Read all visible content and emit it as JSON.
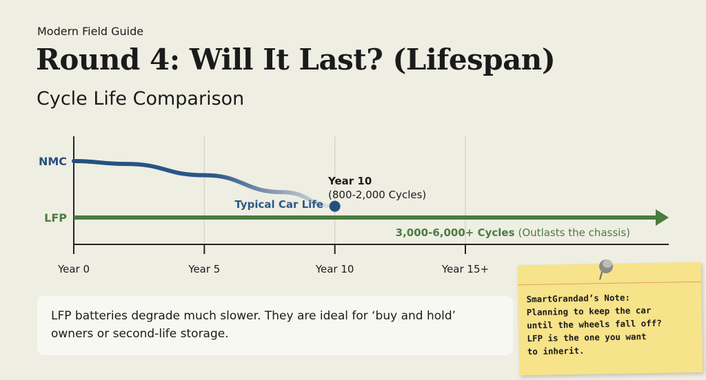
{
  "header": {
    "kicker": "Modern Field Guide",
    "title": "Round 4: Will It Last? (Lifespan)",
    "subtitle": "Cycle Life Comparison"
  },
  "chart_data": {
    "type": "line",
    "x_ticks": [
      "Year 0",
      "Year 5",
      "Year 10",
      "Year 15+"
    ],
    "x": [
      0,
      5,
      10,
      15
    ],
    "xlim": [
      0,
      18
    ],
    "grid": true,
    "series": [
      {
        "name": "NMC",
        "color": "#24507f",
        "x": [
          0,
          2,
          5,
          8,
          10
        ],
        "y": [
          100,
          99,
          95,
          89,
          84
        ],
        "end_marker": true
      },
      {
        "name": "LFP",
        "color": "#4a7c3f",
        "x": [
          0,
          18
        ],
        "y": [
          80,
          80
        ],
        "arrow": true
      }
    ],
    "ylim": [
      65,
      105
    ],
    "annotations": {
      "nmc_end_title": "Year 10",
      "nmc_end_detail": "(800-2,000 Cycles)",
      "nmc_label": "Typical Car Life",
      "lfp_bold": "3,000-6,000+ Cycles",
      "lfp_detail": "(Outlasts the chassis)"
    }
  },
  "info": {
    "text": "LFP batteries degrade much slower. They are ideal for ‘buy and hold’ owners or second-life storage."
  },
  "note": {
    "lines": [
      "SmartGrandad’s Note:",
      "Planning to keep the car",
      "until the wheels fall off?",
      "LFP is the one you want",
      "to inherit."
    ]
  }
}
